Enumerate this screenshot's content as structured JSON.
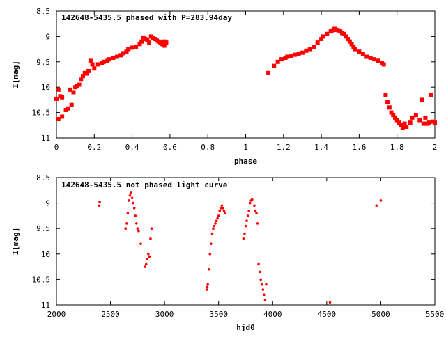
{
  "chart_data": [
    {
      "type": "scatter",
      "title": "142648-5435.5 phased with P=283.94day",
      "xlabel": "phase",
      "ylabel": "I[mag]",
      "xlim": [
        0,
        2
      ],
      "ylim": [
        11,
        8.5
      ],
      "y_inverted": true,
      "grid": false,
      "marker": "square",
      "color": "#ff0000",
      "xticks": [
        0,
        0.2,
        0.4,
        0.6,
        0.8,
        1,
        1.2,
        1.4,
        1.6,
        1.8,
        2
      ],
      "xtick_labels": [
        "0",
        "0.2",
        "0.4",
        "0.6",
        "0.8",
        "1",
        "1.2",
        "1.4",
        "1.6",
        "1.8",
        "2"
      ],
      "yticks": [
        8.5,
        9,
        9.5,
        10,
        10.5,
        11
      ],
      "ytick_labels": [
        "8.5",
        "9",
        "9.5",
        "10",
        "10.5",
        "11"
      ],
      "series": [
        {
          "x": [
            0.0,
            0.01,
            0.01,
            0.02,
            0.03,
            0.03,
            0.05,
            0.06,
            0.07,
            0.08,
            0.09,
            0.1,
            0.11,
            0.12,
            0.13,
            0.14,
            0.15,
            0.16,
            0.17,
            0.18,
            0.19,
            0.2,
            0.22,
            0.24,
            0.25,
            0.27,
            0.28,
            0.3,
            0.32,
            0.34,
            0.35,
            0.37,
            0.38,
            0.4,
            0.42,
            0.44,
            0.45,
            0.46,
            0.47,
            0.48,
            0.49,
            0.5,
            0.51,
            0.52,
            0.53,
            0.54,
            0.55,
            0.56,
            0.57,
            0.57,
            0.58,
            1.12,
            1.15,
            1.17,
            1.19,
            1.21,
            1.22,
            1.24,
            1.26,
            1.28,
            1.3,
            1.32,
            1.34,
            1.36,
            1.38,
            1.4,
            1.41,
            1.43,
            1.45,
            1.46,
            1.47,
            1.48,
            1.49,
            1.5,
            1.51,
            1.52,
            1.53,
            1.54,
            1.55,
            1.56,
            1.57,
            1.58,
            1.6,
            1.62,
            1.64,
            1.66,
            1.68,
            1.7,
            1.72,
            1.73,
            1.74,
            1.75,
            1.76,
            1.77,
            1.78,
            1.79,
            1.8,
            1.81,
            1.82,
            1.83,
            1.84,
            1.85,
            1.87,
            1.88,
            1.9,
            1.92,
            1.93,
            1.94,
            1.95,
            1.96,
            1.97,
            1.98,
            1.99,
            2.0
          ],
          "y": [
            10.23,
            10.05,
            10.63,
            10.18,
            10.2,
            10.58,
            10.45,
            10.42,
            10.05,
            10.35,
            10.1,
            10.0,
            9.97,
            9.95,
            9.85,
            9.78,
            9.72,
            9.73,
            9.68,
            9.48,
            9.55,
            9.63,
            9.55,
            9.52,
            9.5,
            9.48,
            9.45,
            9.42,
            9.4,
            9.37,
            9.33,
            9.3,
            9.25,
            9.22,
            9.2,
            9.15,
            9.1,
            9.02,
            9.05,
            9.07,
            9.12,
            9.0,
            9.03,
            9.05,
            9.08,
            9.1,
            9.12,
            9.15,
            9.1,
            9.18,
            9.12,
            9.72,
            9.58,
            9.5,
            9.45,
            9.42,
            9.4,
            9.38,
            9.36,
            9.35,
            9.32,
            9.28,
            9.25,
            9.2,
            9.12,
            9.05,
            9.0,
            8.95,
            8.9,
            8.88,
            8.85,
            8.87,
            8.88,
            8.9,
            8.93,
            8.95,
            9.0,
            9.05,
            9.1,
            9.15,
            9.2,
            9.25,
            9.3,
            9.35,
            9.4,
            9.42,
            9.45,
            9.48,
            9.52,
            9.55,
            10.15,
            10.3,
            10.4,
            10.5,
            10.55,
            10.6,
            10.65,
            10.7,
            10.75,
            10.8,
            10.72,
            10.78,
            10.7,
            10.6,
            10.55,
            10.65,
            10.25,
            10.72,
            10.6,
            10.72,
            10.7,
            10.15,
            10.68,
            10.7
          ]
        }
      ],
      "annotations": []
    },
    {
      "type": "scatter",
      "title": "142648-5435.5 not phased light curve",
      "xlabel": "hjd0",
      "ylabel": "I[mag]",
      "xlim": [
        2000,
        5500
      ],
      "ylim": [
        11,
        8.5
      ],
      "y_inverted": true,
      "grid": false,
      "marker": "dot",
      "color": "#ff0000",
      "xticks": [
        2000,
        2500,
        3000,
        3500,
        4000,
        4500,
        5000,
        5500
      ],
      "xtick_labels": [
        "2000",
        "2500",
        "3000",
        "3500",
        "4000",
        "4500",
        "5000",
        "5500"
      ],
      "yticks": [
        8.5,
        9,
        9.5,
        10,
        10.5,
        11
      ],
      "ytick_labels": [
        "8.5",
        "9",
        "9.5",
        "10",
        "10.5",
        "11"
      ],
      "series": [
        {
          "x": [
            2395,
            2400,
            2640,
            2650,
            2660,
            2670,
            2680,
            2690,
            2700,
            2710,
            2720,
            2730,
            2740,
            2750,
            2760,
            2780,
            2820,
            2830,
            2840,
            2850,
            2860,
            2870,
            2880,
            3390,
            3395,
            3400,
            3410,
            3420,
            3430,
            3440,
            3450,
            3460,
            3470,
            3480,
            3490,
            3500,
            3510,
            3520,
            3530,
            3540,
            3550,
            3560,
            3730,
            3740,
            3750,
            3760,
            3770,
            3780,
            3790,
            3800,
            3810,
            3830,
            3840,
            3850,
            3860,
            3870,
            3880,
            3890,
            3900,
            3910,
            3920,
            3930,
            3940,
            4530,
            4960,
            5000
          ],
          "y": [
            9.05,
            8.98,
            9.5,
            9.4,
            9.2,
            8.95,
            8.85,
            8.8,
            8.9,
            9.0,
            9.1,
            9.25,
            9.4,
            9.5,
            9.55,
            9.8,
            10.25,
            10.2,
            10.1,
            10.0,
            10.05,
            9.7,
            9.5,
            10.7,
            10.65,
            10.6,
            10.3,
            10.0,
            9.8,
            9.6,
            9.5,
            9.45,
            9.4,
            9.35,
            9.3,
            9.25,
            9.15,
            9.1,
            9.05,
            9.1,
            9.15,
            9.2,
            9.7,
            9.6,
            9.45,
            9.35,
            9.25,
            9.15,
            9.0,
            8.95,
            8.93,
            9.05,
            9.15,
            9.2,
            9.4,
            10.2,
            10.35,
            10.5,
            10.6,
            10.7,
            10.8,
            10.9,
            10.6,
            10.95,
            9.05,
            8.95
          ]
        }
      ],
      "annotations": []
    }
  ]
}
